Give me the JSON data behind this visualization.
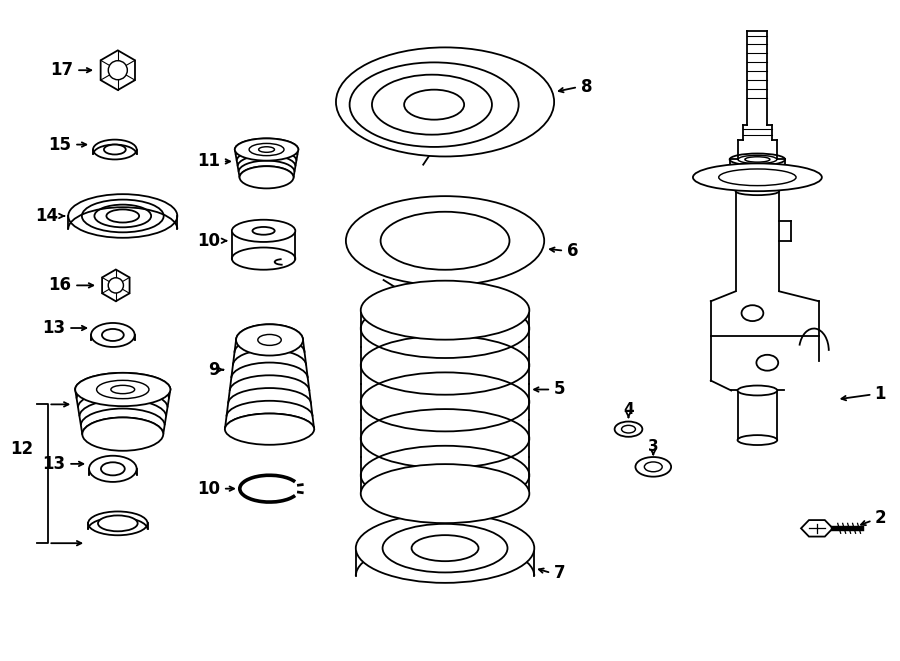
{
  "bg_color": "#ffffff",
  "line_color": "#000000",
  "line_width": 1.3,
  "fig_width": 9.0,
  "fig_height": 6.61,
  "dpi": 100
}
